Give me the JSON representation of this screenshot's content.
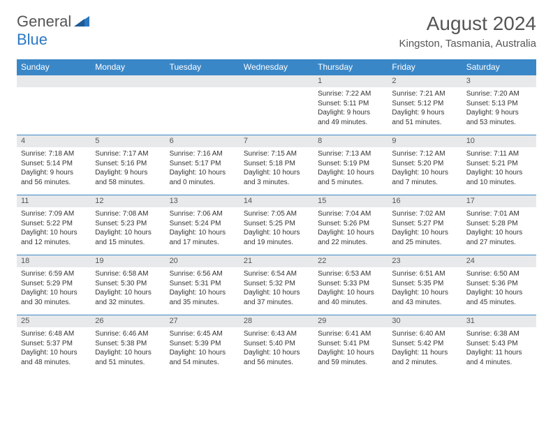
{
  "logo": {
    "text1": "General",
    "text2": "Blue",
    "shape_color": "#2b78c2"
  },
  "title": "August 2024",
  "location": "Kingston, Tasmania, Australia",
  "colors": {
    "header_bg": "#3a87c8",
    "daynum_bg": "#e8e9ea",
    "border": "#3a87c8"
  },
  "weekdays": [
    "Sunday",
    "Monday",
    "Tuesday",
    "Wednesday",
    "Thursday",
    "Friday",
    "Saturday"
  ],
  "weeks": [
    [
      null,
      null,
      null,
      null,
      {
        "n": "1",
        "sr": "7:22 AM",
        "ss": "5:11 PM",
        "dl": "9 hours and 49 minutes."
      },
      {
        "n": "2",
        "sr": "7:21 AM",
        "ss": "5:12 PM",
        "dl": "9 hours and 51 minutes."
      },
      {
        "n": "3",
        "sr": "7:20 AM",
        "ss": "5:13 PM",
        "dl": "9 hours and 53 minutes."
      }
    ],
    [
      {
        "n": "4",
        "sr": "7:18 AM",
        "ss": "5:14 PM",
        "dl": "9 hours and 56 minutes."
      },
      {
        "n": "5",
        "sr": "7:17 AM",
        "ss": "5:16 PM",
        "dl": "9 hours and 58 minutes."
      },
      {
        "n": "6",
        "sr": "7:16 AM",
        "ss": "5:17 PM",
        "dl": "10 hours and 0 minutes."
      },
      {
        "n": "7",
        "sr": "7:15 AM",
        "ss": "5:18 PM",
        "dl": "10 hours and 3 minutes."
      },
      {
        "n": "8",
        "sr": "7:13 AM",
        "ss": "5:19 PM",
        "dl": "10 hours and 5 minutes."
      },
      {
        "n": "9",
        "sr": "7:12 AM",
        "ss": "5:20 PM",
        "dl": "10 hours and 7 minutes."
      },
      {
        "n": "10",
        "sr": "7:11 AM",
        "ss": "5:21 PM",
        "dl": "10 hours and 10 minutes."
      }
    ],
    [
      {
        "n": "11",
        "sr": "7:09 AM",
        "ss": "5:22 PM",
        "dl": "10 hours and 12 minutes."
      },
      {
        "n": "12",
        "sr": "7:08 AM",
        "ss": "5:23 PM",
        "dl": "10 hours and 15 minutes."
      },
      {
        "n": "13",
        "sr": "7:06 AM",
        "ss": "5:24 PM",
        "dl": "10 hours and 17 minutes."
      },
      {
        "n": "14",
        "sr": "7:05 AM",
        "ss": "5:25 PM",
        "dl": "10 hours and 19 minutes."
      },
      {
        "n": "15",
        "sr": "7:04 AM",
        "ss": "5:26 PM",
        "dl": "10 hours and 22 minutes."
      },
      {
        "n": "16",
        "sr": "7:02 AM",
        "ss": "5:27 PM",
        "dl": "10 hours and 25 minutes."
      },
      {
        "n": "17",
        "sr": "7:01 AM",
        "ss": "5:28 PM",
        "dl": "10 hours and 27 minutes."
      }
    ],
    [
      {
        "n": "18",
        "sr": "6:59 AM",
        "ss": "5:29 PM",
        "dl": "10 hours and 30 minutes."
      },
      {
        "n": "19",
        "sr": "6:58 AM",
        "ss": "5:30 PM",
        "dl": "10 hours and 32 minutes."
      },
      {
        "n": "20",
        "sr": "6:56 AM",
        "ss": "5:31 PM",
        "dl": "10 hours and 35 minutes."
      },
      {
        "n": "21",
        "sr": "6:54 AM",
        "ss": "5:32 PM",
        "dl": "10 hours and 37 minutes."
      },
      {
        "n": "22",
        "sr": "6:53 AM",
        "ss": "5:33 PM",
        "dl": "10 hours and 40 minutes."
      },
      {
        "n": "23",
        "sr": "6:51 AM",
        "ss": "5:35 PM",
        "dl": "10 hours and 43 minutes."
      },
      {
        "n": "24",
        "sr": "6:50 AM",
        "ss": "5:36 PM",
        "dl": "10 hours and 45 minutes."
      }
    ],
    [
      {
        "n": "25",
        "sr": "6:48 AM",
        "ss": "5:37 PM",
        "dl": "10 hours and 48 minutes."
      },
      {
        "n": "26",
        "sr": "6:46 AM",
        "ss": "5:38 PM",
        "dl": "10 hours and 51 minutes."
      },
      {
        "n": "27",
        "sr": "6:45 AM",
        "ss": "5:39 PM",
        "dl": "10 hours and 54 minutes."
      },
      {
        "n": "28",
        "sr": "6:43 AM",
        "ss": "5:40 PM",
        "dl": "10 hours and 56 minutes."
      },
      {
        "n": "29",
        "sr": "6:41 AM",
        "ss": "5:41 PM",
        "dl": "10 hours and 59 minutes."
      },
      {
        "n": "30",
        "sr": "6:40 AM",
        "ss": "5:42 PM",
        "dl": "11 hours and 2 minutes."
      },
      {
        "n": "31",
        "sr": "6:38 AM",
        "ss": "5:43 PM",
        "dl": "11 hours and 4 minutes."
      }
    ]
  ],
  "labels": {
    "sunrise": "Sunrise: ",
    "sunset": "Sunset: ",
    "daylight": "Daylight: "
  }
}
